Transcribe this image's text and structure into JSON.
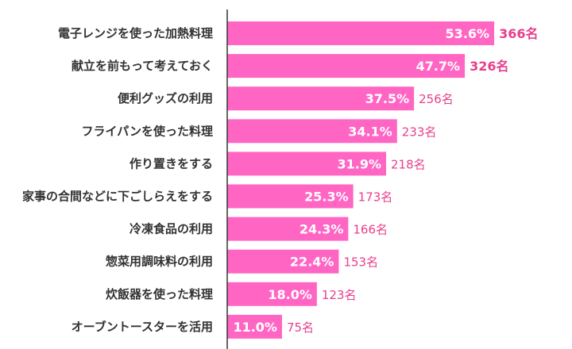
{
  "chart_data": {
    "type": "bar",
    "orientation": "horizontal",
    "categories": [
      "電子レンジを使った加熱料理",
      "献立を前もって考えておく",
      "便利グッズの利用",
      "フライパンを使った料理",
      "作り置きをする",
      "家事の合間などに下ごしらえをする",
      "冷凍食品の利用",
      "惣菜用調味料の利用",
      "炊飯器を使った料理",
      "オーブントースターを活用"
    ],
    "values": [
      53.6,
      47.7,
      37.5,
      34.1,
      31.9,
      25.3,
      24.3,
      22.4,
      18.0,
      11.0
    ],
    "value_labels": [
      "53.6%",
      "47.7%",
      "37.5%",
      "34.1%",
      "31.9%",
      "25.3%",
      "24.3%",
      "22.4%",
      "18.0%",
      "11.0%"
    ],
    "counts": [
      366,
      326,
      256,
      233,
      218,
      173,
      166,
      153,
      123,
      75
    ],
    "count_labels": [
      "366名",
      "326名",
      "256名",
      "233名",
      "218名",
      "173名",
      "166名",
      "153名",
      "123名",
      "75名"
    ],
    "bold_counts": [
      true,
      true,
      false,
      false,
      false,
      false,
      false,
      false,
      false,
      false
    ],
    "xlim": [
      0,
      60
    ],
    "grid": false,
    "legend": "none",
    "colors": {
      "bar": "#ff66c4",
      "count_text": "#e83e8c",
      "percent_text": "#ffffff",
      "axis_line": "#333333",
      "category_text": "#333333"
    }
  }
}
